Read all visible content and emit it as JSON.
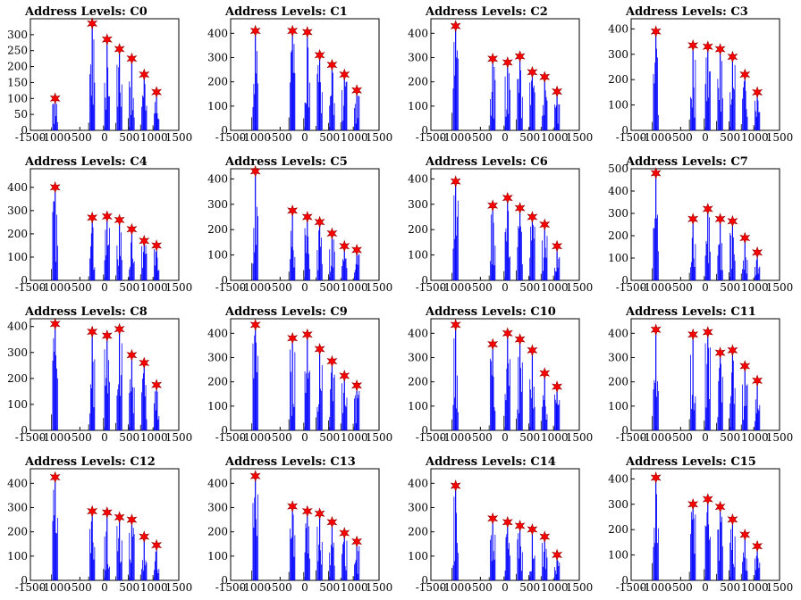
{
  "chart_data": [
    {
      "type": "bar",
      "title": "Address Levels: C0",
      "xlim": [
        -1500,
        1500
      ],
      "ylim": [
        0,
        350
      ],
      "yticks": [
        0,
        50,
        100,
        150,
        200,
        250,
        300
      ],
      "xticks": [
        -1500,
        -1000,
        -500,
        0,
        500,
        1000,
        1500
      ],
      "levels": [
        {
          "x": -1000,
          "y": 100
        },
        {
          "x": -250,
          "y": 335
        },
        {
          "x": 50,
          "y": 285
        },
        {
          "x": 300,
          "y": 255
        },
        {
          "x": 550,
          "y": 225
        },
        {
          "x": 800,
          "y": 175
        },
        {
          "x": 1050,
          "y": 120
        }
      ]
    },
    {
      "type": "bar",
      "title": "Address Levels: C1",
      "xlim": [
        -1500,
        1500
      ],
      "ylim": [
        0,
        460
      ],
      "yticks": [
        0,
        100,
        200,
        300,
        400
      ],
      "xticks": [
        -1500,
        -1000,
        -500,
        0,
        500,
        1000,
        1500
      ],
      "levels": [
        {
          "x": -1000,
          "y": 410
        },
        {
          "x": -250,
          "y": 410
        },
        {
          "x": 50,
          "y": 405
        },
        {
          "x": 300,
          "y": 310
        },
        {
          "x": 550,
          "y": 270
        },
        {
          "x": 800,
          "y": 230
        },
        {
          "x": 1050,
          "y": 165
        }
      ]
    },
    {
      "type": "bar",
      "title": "Address Levels: C2",
      "xlim": [
        -1500,
        1500
      ],
      "ylim": [
        0,
        460
      ],
      "yticks": [
        0,
        100,
        200,
        300,
        400
      ],
      "xticks": [
        -1500,
        -1000,
        -500,
        0,
        500,
        1000,
        1500
      ],
      "levels": [
        {
          "x": -1000,
          "y": 430
        },
        {
          "x": -250,
          "y": 295
        },
        {
          "x": 50,
          "y": 280
        },
        {
          "x": 300,
          "y": 305
        },
        {
          "x": 550,
          "y": 240
        },
        {
          "x": 800,
          "y": 220
        },
        {
          "x": 1050,
          "y": 160
        }
      ]
    },
    {
      "type": "bar",
      "title": "Address Levels: C3",
      "xlim": [
        -1500,
        1500
      ],
      "ylim": [
        0,
        440
      ],
      "yticks": [
        0,
        100,
        200,
        300,
        400
      ],
      "xticks": [
        -1500,
        -1000,
        -500,
        0,
        500,
        1000,
        1500
      ],
      "levels": [
        {
          "x": -1000,
          "y": 390
        },
        {
          "x": -250,
          "y": 335
        },
        {
          "x": 50,
          "y": 330
        },
        {
          "x": 300,
          "y": 320
        },
        {
          "x": 550,
          "y": 290
        },
        {
          "x": 800,
          "y": 220
        },
        {
          "x": 1050,
          "y": 150
        }
      ]
    },
    {
      "type": "bar",
      "title": "Address Levels: C4",
      "xlim": [
        -1500,
        1500
      ],
      "ylim": [
        0,
        480
      ],
      "yticks": [
        0,
        100,
        200,
        300,
        400
      ],
      "xticks": [
        -1500,
        -1000,
        -500,
        0,
        500,
        1000,
        1500
      ],
      "levels": [
        {
          "x": -1000,
          "y": 400
        },
        {
          "x": -250,
          "y": 270
        },
        {
          "x": 50,
          "y": 275
        },
        {
          "x": 300,
          "y": 260
        },
        {
          "x": 550,
          "y": 220
        },
        {
          "x": 800,
          "y": 170
        },
        {
          "x": 1050,
          "y": 150
        }
      ]
    },
    {
      "type": "bar",
      "title": "Address Levels: C5",
      "xlim": [
        -1500,
        1500
      ],
      "ylim": [
        0,
        440
      ],
      "yticks": [
        0,
        100,
        200,
        300,
        400
      ],
      "xticks": [
        -1500,
        -1000,
        -500,
        0,
        500,
        1000,
        1500
      ],
      "levels": [
        {
          "x": -1000,
          "y": 430
        },
        {
          "x": -250,
          "y": 275
        },
        {
          "x": 50,
          "y": 250
        },
        {
          "x": 300,
          "y": 230
        },
        {
          "x": 550,
          "y": 185
        },
        {
          "x": 800,
          "y": 135
        },
        {
          "x": 1050,
          "y": 120
        }
      ]
    },
    {
      "type": "bar",
      "title": "Address Levels: C6",
      "xlim": [
        -1500,
        1500
      ],
      "ylim": [
        0,
        440
      ],
      "yticks": [
        0,
        100,
        200,
        300,
        400
      ],
      "xticks": [
        -1500,
        -1000,
        -500,
        0,
        500,
        1000,
        1500
      ],
      "levels": [
        {
          "x": -1000,
          "y": 390
        },
        {
          "x": -250,
          "y": 295
        },
        {
          "x": 50,
          "y": 325
        },
        {
          "x": 300,
          "y": 285
        },
        {
          "x": 550,
          "y": 250
        },
        {
          "x": 800,
          "y": 220
        },
        {
          "x": 1050,
          "y": 135
        }
      ]
    },
    {
      "type": "bar",
      "title": "Address Levels: C7",
      "xlim": [
        -1500,
        1500
      ],
      "ylim": [
        0,
        500
      ],
      "yticks": [
        0,
        100,
        200,
        300,
        400,
        500
      ],
      "xticks": [
        -1500,
        -1000,
        -500,
        0,
        500,
        1000,
        1500
      ],
      "levels": [
        {
          "x": -1000,
          "y": 480
        },
        {
          "x": -250,
          "y": 275
        },
        {
          "x": 50,
          "y": 320
        },
        {
          "x": 300,
          "y": 275
        },
        {
          "x": 550,
          "y": 265
        },
        {
          "x": 800,
          "y": 190
        },
        {
          "x": 1050,
          "y": 125
        }
      ]
    },
    {
      "type": "bar",
      "title": "Address Levels: C8",
      "xlim": [
        -1500,
        1500
      ],
      "ylim": [
        0,
        430
      ],
      "yticks": [
        0,
        100,
        200,
        300,
        400
      ],
      "xticks": [
        -1500,
        -1000,
        -500,
        0,
        500,
        1000,
        1500
      ],
      "levels": [
        {
          "x": -1000,
          "y": 410
        },
        {
          "x": -250,
          "y": 380
        },
        {
          "x": 50,
          "y": 365
        },
        {
          "x": 300,
          "y": 390
        },
        {
          "x": 550,
          "y": 290
        },
        {
          "x": 800,
          "y": 260
        },
        {
          "x": 1050,
          "y": 175
        }
      ]
    },
    {
      "type": "bar",
      "title": "Address Levels: C9",
      "xlim": [
        -1500,
        1500
      ],
      "ylim": [
        0,
        460
      ],
      "yticks": [
        0,
        100,
        200,
        300,
        400
      ],
      "xticks": [
        -1500,
        -1000,
        -500,
        0,
        500,
        1000,
        1500
      ],
      "levels": [
        {
          "x": -1000,
          "y": 435
        },
        {
          "x": -250,
          "y": 380
        },
        {
          "x": 50,
          "y": 395
        },
        {
          "x": 300,
          "y": 335
        },
        {
          "x": 550,
          "y": 285
        },
        {
          "x": 800,
          "y": 225
        },
        {
          "x": 1050,
          "y": 185
        }
      ]
    },
    {
      "type": "bar",
      "title": "Address Levels: C10",
      "xlim": [
        -1500,
        1500
      ],
      "ylim": [
        0,
        460
      ],
      "yticks": [
        0,
        100,
        200,
        300,
        400
      ],
      "xticks": [
        -1500,
        -1000,
        -500,
        0,
        500,
        1000,
        1500
      ],
      "levels": [
        {
          "x": -1000,
          "y": 435
        },
        {
          "x": -250,
          "y": 355
        },
        {
          "x": 50,
          "y": 400
        },
        {
          "x": 300,
          "y": 375
        },
        {
          "x": 550,
          "y": 330
        },
        {
          "x": 800,
          "y": 235
        },
        {
          "x": 1050,
          "y": 180
        }
      ]
    },
    {
      "type": "bar",
      "title": "Address Levels: C11",
      "xlim": [
        -1500,
        1500
      ],
      "ylim": [
        0,
        460
      ],
      "yticks": [
        0,
        100,
        200,
        300,
        400
      ],
      "xticks": [
        -1500,
        -1000,
        -500,
        0,
        500,
        1000,
        1500
      ],
      "levels": [
        {
          "x": -1000,
          "y": 415
        },
        {
          "x": -250,
          "y": 395
        },
        {
          "x": 50,
          "y": 405
        },
        {
          "x": 300,
          "y": 320
        },
        {
          "x": 550,
          "y": 330
        },
        {
          "x": 800,
          "y": 265
        },
        {
          "x": 1050,
          "y": 205
        }
      ]
    },
    {
      "type": "bar",
      "title": "Address Levels: C12",
      "xlim": [
        -1500,
        1500
      ],
      "ylim": [
        0,
        460
      ],
      "yticks": [
        0,
        100,
        200,
        300,
        400
      ],
      "xticks": [
        -1500,
        -1000,
        -500,
        0,
        500,
        1000,
        1500
      ],
      "levels": [
        {
          "x": -1000,
          "y": 425
        },
        {
          "x": -250,
          "y": 285
        },
        {
          "x": 50,
          "y": 280
        },
        {
          "x": 300,
          "y": 260
        },
        {
          "x": 550,
          "y": 250
        },
        {
          "x": 800,
          "y": 180
        },
        {
          "x": 1050,
          "y": 145
        }
      ]
    },
    {
      "type": "bar",
      "title": "Address Levels: C13",
      "xlim": [
        -1500,
        1500
      ],
      "ylim": [
        0,
        460
      ],
      "yticks": [
        0,
        100,
        200,
        300,
        400
      ],
      "xticks": [
        -1500,
        -1000,
        -500,
        0,
        500,
        1000,
        1500
      ],
      "levels": [
        {
          "x": -1000,
          "y": 430
        },
        {
          "x": -250,
          "y": 305
        },
        {
          "x": 50,
          "y": 285
        },
        {
          "x": 300,
          "y": 275
        },
        {
          "x": 550,
          "y": 240
        },
        {
          "x": 800,
          "y": 195
        },
        {
          "x": 1050,
          "y": 160
        }
      ]
    },
    {
      "type": "bar",
      "title": "Address Levels: C14",
      "xlim": [
        -1500,
        1500
      ],
      "ylim": [
        0,
        460
      ],
      "yticks": [
        0,
        100,
        200,
        300,
        400
      ],
      "xticks": [
        -1500,
        -1000,
        -500,
        0,
        500,
        1000,
        1500
      ],
      "levels": [
        {
          "x": -1000,
          "y": 390
        },
        {
          "x": -250,
          "y": 255
        },
        {
          "x": 50,
          "y": 240
        },
        {
          "x": 300,
          "y": 225
        },
        {
          "x": 550,
          "y": 210
        },
        {
          "x": 800,
          "y": 180
        },
        {
          "x": 1050,
          "y": 105
        }
      ]
    },
    {
      "type": "bar",
      "title": "Address Levels: C15",
      "xlim": [
        -1500,
        1500
      ],
      "ylim": [
        0,
        440
      ],
      "yticks": [
        0,
        100,
        200,
        300,
        400
      ],
      "xticks": [
        -1500,
        -1000,
        -500,
        0,
        500,
        1000,
        1500
      ],
      "levels": [
        {
          "x": -1000,
          "y": 405
        },
        {
          "x": -250,
          "y": 300
        },
        {
          "x": 50,
          "y": 320
        },
        {
          "x": 300,
          "y": 290
        },
        {
          "x": 550,
          "y": 240
        },
        {
          "x": 800,
          "y": 180
        },
        {
          "x": 1050,
          "y": 135
        }
      ]
    }
  ],
  "colors": {
    "bars": "#0000ff",
    "markers": "#ff0000",
    "marker_outline": "#990000",
    "axes": "#000000"
  }
}
